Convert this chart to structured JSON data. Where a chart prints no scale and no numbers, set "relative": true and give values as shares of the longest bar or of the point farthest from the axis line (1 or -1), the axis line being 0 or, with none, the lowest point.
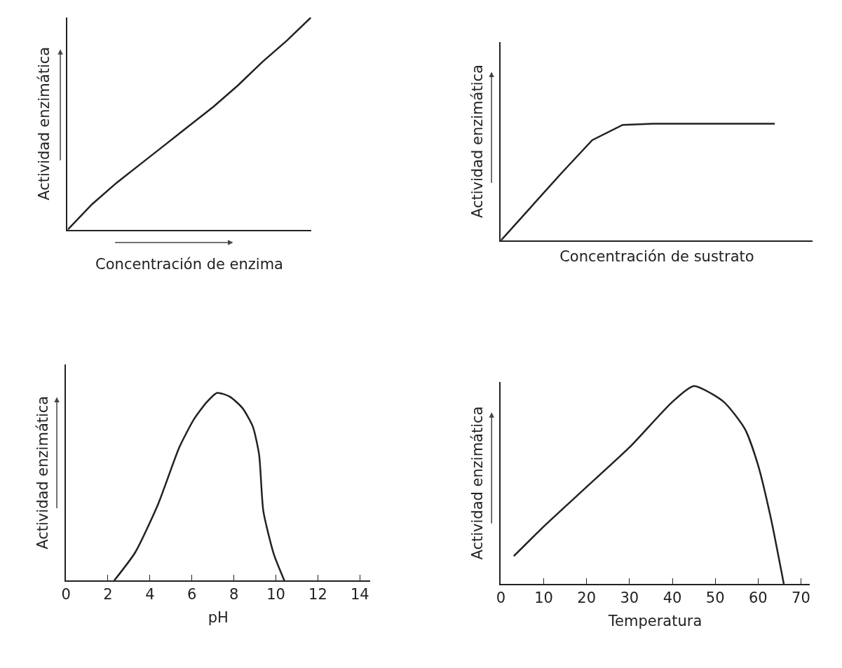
{
  "chart_data": [
    {
      "type": "line",
      "relative": true,
      "color": "#222222",
      "xlabel": "Concentración de enzima",
      "ylabel": "Actividad enzimática",
      "categories": [
        null,
        null,
        null,
        null,
        null,
        null,
        null,
        null,
        null,
        null,
        null
      ],
      "values": [
        0,
        0.12,
        0.22,
        0.31,
        0.4,
        0.49,
        0.58,
        0.68,
        0.79,
        0.89,
        1.0
      ]
    },
    {
      "type": "line",
      "relative": true,
      "color": "#222222",
      "xlabel": "Concentración de sustrato",
      "ylabel": "Actividad enzimática",
      "categories": [
        null,
        null,
        null,
        null,
        null,
        null,
        null,
        null,
        null,
        null
      ],
      "values": [
        0,
        0.29,
        0.58,
        0.86,
        0.99,
        1.0,
        1.0,
        1.0,
        1.0,
        1.0
      ]
    },
    {
      "type": "line",
      "relative": true,
      "color": "#222222",
      "xlabel": "pH",
      "ylabel": "Actividad enzimática",
      "xlim": [
        0,
        14.5
      ],
      "xticks": [
        0,
        2,
        4,
        6,
        8,
        10,
        12,
        14
      ],
      "x": [
        2.3,
        3.3,
        4.4,
        5.4,
        6.1,
        6.7,
        7.2,
        7.8,
        8.4,
        8.9,
        9.2,
        9.4,
        9.9,
        10.4
      ],
      "values": [
        0,
        0.15,
        0.41,
        0.71,
        0.86,
        0.95,
        1.0,
        0.98,
        0.92,
        0.82,
        0.67,
        0.37,
        0.14,
        0
      ]
    },
    {
      "type": "line",
      "relative": true,
      "color": "#222222",
      "xlabel": "Temperatura",
      "ylabel": "Actividad enzimática",
      "xlim": [
        0,
        72
      ],
      "xticks": [
        0,
        10,
        20,
        30,
        40,
        50,
        60,
        70
      ],
      "x": [
        3,
        10,
        20,
        30,
        40,
        45,
        52,
        57,
        60,
        63,
        66
      ],
      "values": [
        0.14,
        0.29,
        0.49,
        0.69,
        0.92,
        1.0,
        0.92,
        0.78,
        0.6,
        0.33,
        0
      ]
    }
  ]
}
